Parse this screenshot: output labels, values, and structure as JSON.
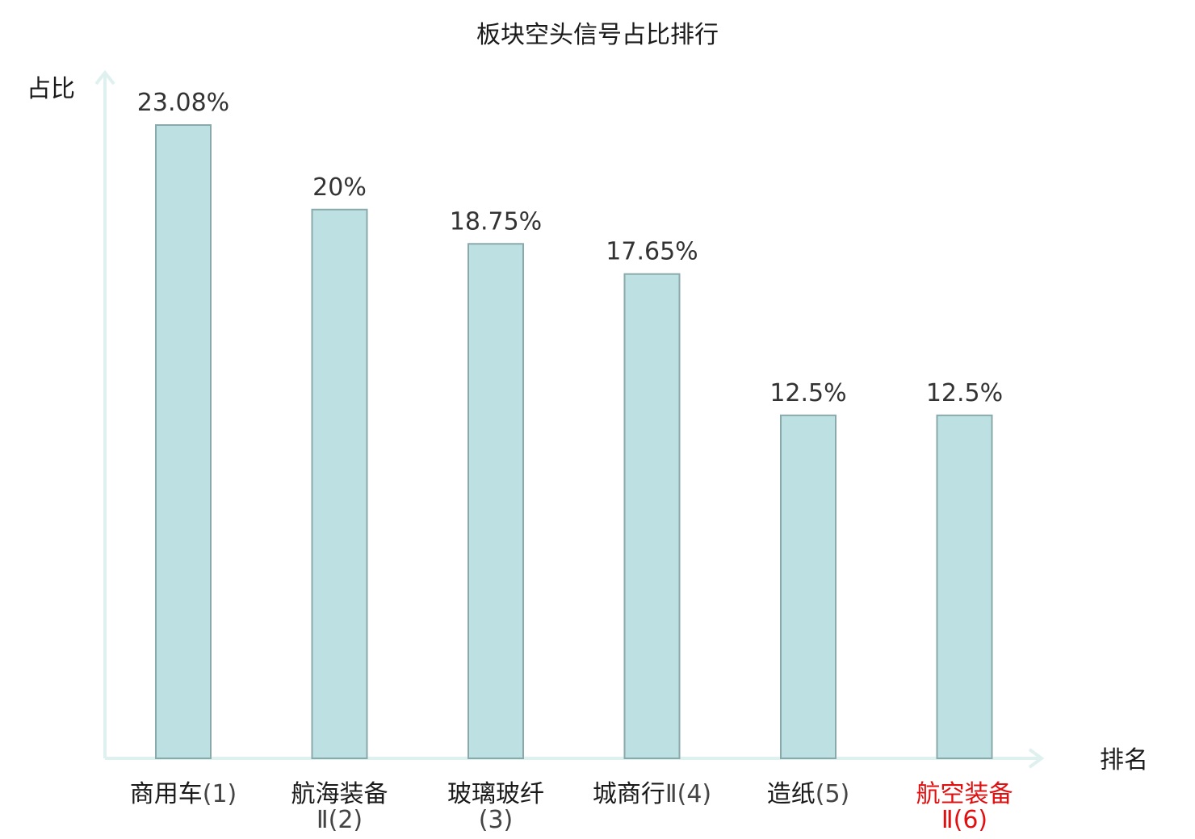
{
  "chart_data": {
    "type": "bar",
    "title": "板块空头信号占比排行",
    "ylabel": "占比",
    "xlabel": "排名",
    "ylim": [
      0,
      25
    ],
    "grid": false,
    "categories": [
      {
        "name": "商用车",
        "rank": "(1)",
        "highlight": false
      },
      {
        "name": "航海装备",
        "rank": "Ⅱ(2)",
        "highlight": false
      },
      {
        "name": "玻璃玻纤",
        "rank": "(3)",
        "highlight": false
      },
      {
        "name": "城商行",
        "rank": "Ⅱ(4)",
        "highlight": false
      },
      {
        "name": "造纸",
        "rank": "(5)",
        "highlight": false
      },
      {
        "name": "航空装备",
        "rank": "Ⅱ(6)",
        "highlight": true
      }
    ],
    "values": [
      23.08,
      20,
      18.75,
      17.65,
      12.5,
      12.5
    ],
    "value_labels": [
      "23.08%",
      "20%",
      "18.75%",
      "17.65%",
      "12.5%",
      "12.5%"
    ]
  },
  "colors": {
    "bar_fill": "#bde0e3",
    "bar_stroke": "#8aa9ab",
    "axis": "#dff1ef",
    "highlight": "#e01010"
  }
}
